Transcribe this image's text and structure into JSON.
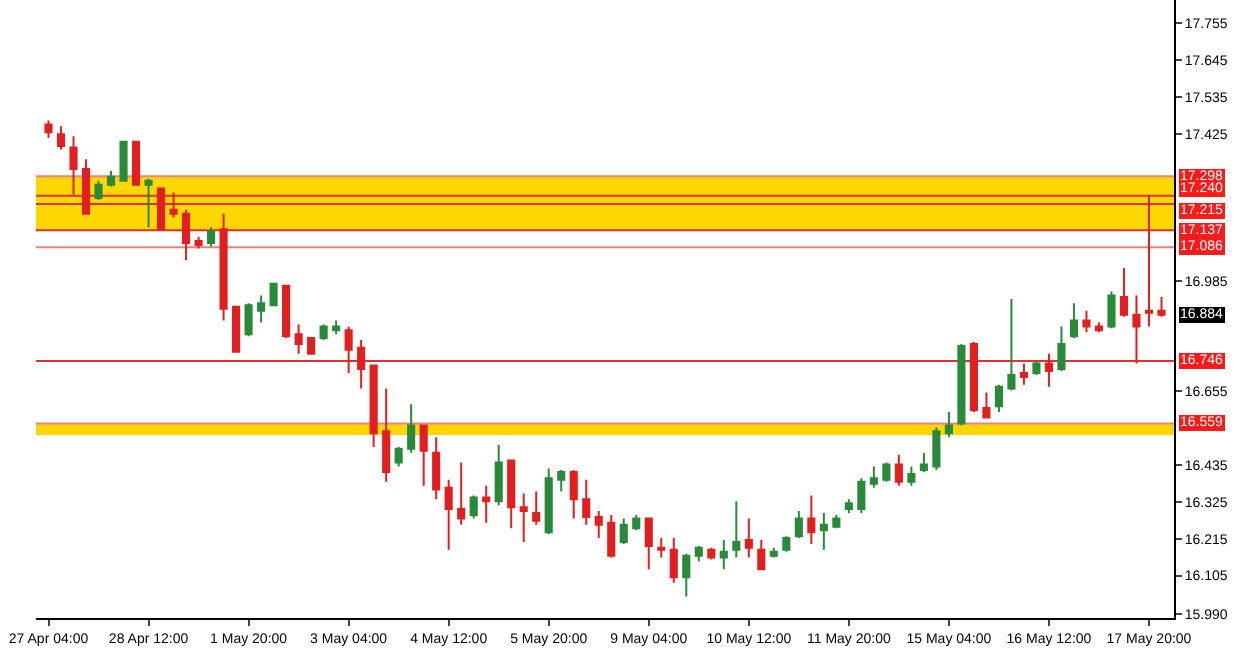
{
  "chart_data": {
    "type": "candlestick",
    "categories": [
      "27 Apr 04:00",
      null,
      null,
      null,
      null,
      null,
      null,
      null,
      "28 Apr 12:00",
      null,
      null,
      null,
      null,
      null,
      null,
      null,
      "1 May 20:00",
      null,
      null,
      null,
      null,
      null,
      null,
      null,
      "3 May 04:00",
      null,
      null,
      null,
      null,
      null,
      null,
      null,
      "4 May 12:00",
      null,
      null,
      null,
      null,
      null,
      null,
      null,
      "5 May 20:00",
      null,
      null,
      null,
      null,
      null,
      null,
      null,
      "9 May 04:00",
      null,
      null,
      null,
      null,
      null,
      null,
      null,
      "10 May 12:00",
      null,
      null,
      null,
      null,
      null,
      null,
      null,
      "11 May 20:00",
      null,
      null,
      null,
      null,
      null,
      null,
      null,
      "15 May 04:00",
      null,
      null,
      null,
      null,
      null,
      null,
      null,
      "16 May 12:00",
      null,
      null,
      null,
      null,
      null,
      null,
      null,
      "17 May 20:00",
      null
    ],
    "ohlc": [
      [
        17.453,
        17.465,
        17.413,
        17.43
      ],
      [
        17.424,
        17.448,
        17.378,
        17.389
      ],
      [
        17.384,
        17.418,
        17.244,
        17.32
      ],
      [
        17.32,
        17.349,
        17.186,
        17.186
      ],
      [
        17.233,
        17.285,
        17.227,
        17.273
      ],
      [
        17.273,
        17.314,
        17.268,
        17.297
      ],
      [
        17.285,
        17.401,
        17.285,
        17.401
      ],
      [
        17.401,
        17.401,
        17.273,
        17.273
      ],
      [
        17.273,
        17.291,
        17.146,
        17.285
      ],
      [
        17.262,
        17.262,
        17.14,
        17.14
      ],
      [
        17.198,
        17.25,
        17.175,
        17.186
      ],
      [
        17.186,
        17.198,
        17.047,
        17.099
      ],
      [
        17.105,
        17.117,
        17.082,
        17.093
      ],
      [
        17.099,
        17.146,
        17.088,
        17.134
      ],
      [
        17.14,
        17.186,
        16.867,
        16.902
      ],
      [
        16.908,
        16.908,
        16.774,
        16.774
      ],
      [
        16.826,
        16.919,
        16.82,
        16.913
      ],
      [
        16.896,
        16.942,
        16.861,
        16.919
      ],
      [
        16.913,
        16.977,
        16.913,
        16.977
      ],
      [
        16.971,
        16.971,
        16.815,
        16.82
      ],
      [
        16.826,
        16.855,
        16.768,
        16.797
      ],
      [
        16.815,
        16.815,
        16.768,
        16.768
      ],
      [
        16.815,
        16.855,
        16.809,
        16.849
      ],
      [
        16.838,
        16.867,
        16.826,
        16.849
      ],
      [
        16.838,
        16.849,
        16.71,
        16.78
      ],
      [
        16.786,
        16.809,
        16.664,
        16.722
      ],
      [
        16.733,
        16.733,
        16.489,
        16.53
      ],
      [
        16.536,
        16.664,
        16.385,
        16.414
      ],
      [
        16.443,
        16.489,
        16.431,
        16.484
      ],
      [
        16.484,
        16.617,
        16.472,
        16.553
      ],
      [
        16.553,
        16.553,
        16.373,
        16.478
      ],
      [
        16.472,
        16.518,
        16.333,
        16.362
      ],
      [
        16.367,
        16.391,
        16.182,
        16.304
      ],
      [
        16.304,
        16.443,
        16.257,
        16.275
      ],
      [
        16.286,
        16.344,
        16.275,
        16.338
      ],
      [
        16.338,
        16.373,
        16.263,
        16.327
      ],
      [
        16.327,
        16.495,
        16.315,
        16.443
      ],
      [
        16.449,
        16.449,
        16.246,
        16.309
      ],
      [
        16.309,
        16.35,
        16.205,
        16.298
      ],
      [
        16.292,
        16.356,
        16.257,
        16.269
      ],
      [
        16.234,
        16.425,
        16.228,
        16.396
      ],
      [
        16.391,
        16.42,
        16.356,
        16.414
      ],
      [
        16.414,
        16.42,
        16.275,
        16.333
      ],
      [
        16.333,
        16.391,
        16.257,
        16.28
      ],
      [
        16.28,
        16.298,
        16.217,
        16.257
      ],
      [
        16.263,
        16.286,
        16.159,
        16.164
      ],
      [
        16.205,
        16.275,
        16.199,
        16.257
      ],
      [
        16.246,
        16.286,
        16.24,
        16.275
      ],
      [
        16.275,
        16.275,
        16.124,
        16.193
      ],
      [
        16.188,
        16.217,
        16.159,
        16.182
      ],
      [
        16.182,
        16.217,
        16.083,
        16.1
      ],
      [
        16.1,
        16.17,
        16.042,
        16.164
      ],
      [
        16.164,
        16.193,
        16.147,
        16.188
      ],
      [
        16.182,
        16.188,
        16.153,
        16.159
      ],
      [
        16.159,
        16.211,
        16.124,
        16.176
      ],
      [
        16.182,
        16.327,
        16.159,
        16.205
      ],
      [
        16.211,
        16.275,
        16.159,
        16.188
      ],
      [
        16.182,
        16.211,
        16.124,
        16.124
      ],
      [
        16.164,
        16.188,
        16.159,
        16.176
      ],
      [
        16.182,
        16.222,
        16.176,
        16.217
      ],
      [
        16.222,
        16.298,
        16.217,
        16.275
      ],
      [
        16.275,
        16.344,
        16.199,
        16.234
      ],
      [
        16.24,
        16.292,
        16.182,
        16.257
      ],
      [
        16.251,
        16.286,
        16.246,
        16.275
      ],
      [
        16.304,
        16.333,
        16.292,
        16.321
      ],
      [
        16.304,
        16.396,
        16.292,
        16.385
      ],
      [
        16.379,
        16.431,
        16.367,
        16.396
      ],
      [
        16.391,
        16.443,
        16.385,
        16.437
      ],
      [
        16.437,
        16.466,
        16.373,
        16.385
      ],
      [
        16.385,
        16.431,
        16.373,
        16.408
      ],
      [
        16.42,
        16.472,
        16.414,
        16.437
      ],
      [
        16.431,
        16.548,
        16.42,
        16.536
      ],
      [
        16.53,
        16.594,
        16.518,
        16.553
      ],
      [
        16.559,
        16.797,
        16.553,
        16.791
      ],
      [
        16.797,
        16.803,
        16.594,
        16.6
      ],
      [
        16.606,
        16.652,
        16.577,
        16.577
      ],
      [
        16.611,
        16.675,
        16.594,
        16.669
      ],
      [
        16.664,
        16.931,
        16.658,
        16.704
      ],
      [
        16.71,
        16.739,
        16.675,
        16.698
      ],
      [
        16.71,
        16.745,
        16.704,
        16.739
      ],
      [
        16.739,
        16.768,
        16.669,
        16.716
      ],
      [
        16.722,
        16.849,
        16.716,
        16.797
      ],
      [
        16.82,
        16.919,
        16.815,
        16.867
      ],
      [
        16.867,
        16.896,
        16.832,
        16.849
      ],
      [
        16.849,
        16.861,
        16.832,
        16.838
      ],
      [
        16.849,
        16.954,
        16.844,
        16.942
      ],
      [
        16.937,
        17.024,
        16.878,
        16.884
      ],
      [
        16.884,
        16.942,
        16.739,
        16.849
      ],
      [
        16.896,
        17.24,
        16.849,
        16.89
      ],
      [
        16.896,
        16.937,
        16.878,
        16.884
      ]
    ],
    "ylim": [
      15.978,
      17.825
    ],
    "yticks": [
      {
        "value": 15.99,
        "label": "15.990"
      },
      16.105,
      16.215,
      16.325,
      16.435,
      16.655,
      16.985,
      17.425,
      17.535,
      17.645,
      17.755
    ],
    "ref_lines": [
      {
        "axis": "y",
        "value": 17.298,
        "label": "17.298",
        "color": "#f08080"
      },
      {
        "axis": "y",
        "value": 17.24,
        "label": "17.240",
        "color": "#e03030"
      },
      {
        "axis": "y",
        "value": 17.215,
        "label": "17.215",
        "color": "#e03030"
      },
      {
        "axis": "y",
        "value": 17.137,
        "label": "17.137",
        "color": "#e03030"
      },
      {
        "axis": "y",
        "value": 17.086,
        "label": "17.086",
        "color": "#f08080"
      },
      {
        "axis": "y",
        "value": 16.746,
        "label": "16.746",
        "color": "#e03030"
      },
      {
        "axis": "y",
        "value": 16.559,
        "label": "16.559",
        "color": "#f08080"
      }
    ],
    "bands": [
      {
        "axis": "y",
        "from": 17.137,
        "to": 17.298,
        "color": "#ffd700"
      },
      {
        "axis": "y",
        "from": 16.525,
        "to": 16.559,
        "color": "#ffd700"
      }
    ],
    "annotations": [
      "16.884"
    ],
    "grid": false
  }
}
